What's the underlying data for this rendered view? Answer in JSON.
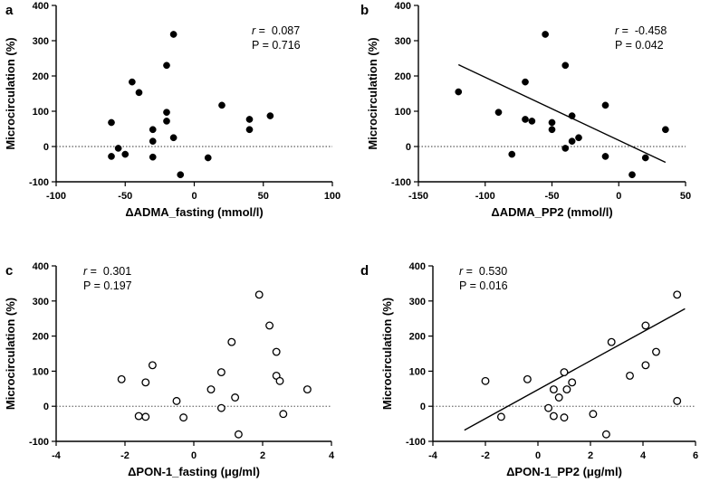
{
  "chart_data": [
    {
      "panel": "a",
      "type": "scatter",
      "xlabel": "ΔADMA_fasting (mmol/l)",
      "ylabel": "Microcirculation (%)",
      "xlim": [
        -100,
        100
      ],
      "ylim": [
        -100,
        400
      ],
      "xticks": [
        "-100",
        "-50",
        "0",
        "50",
        "100"
      ],
      "yticks": [
        "-100",
        "0",
        "100",
        "200",
        "300",
        "400"
      ],
      "marker": "filled",
      "annotation": {
        "r_label": "r",
        "r_value": " =  0.087",
        "p_text": "P = 0.716"
      },
      "regression": null,
      "points": [
        {
          "x": -60,
          "y": 68
        },
        {
          "x": -60,
          "y": -28
        },
        {
          "x": -55,
          "y": -5
        },
        {
          "x": -50,
          "y": -22
        },
        {
          "x": -45,
          "y": 183
        },
        {
          "x": -40,
          "y": 153
        },
        {
          "x": -30,
          "y": 48
        },
        {
          "x": -30,
          "y": 15
        },
        {
          "x": -30,
          "y": -30
        },
        {
          "x": -20,
          "y": 230
        },
        {
          "x": -20,
          "y": 97
        },
        {
          "x": -20,
          "y": 72
        },
        {
          "x": -15,
          "y": 318
        },
        {
          "x": -15,
          "y": 25
        },
        {
          "x": -10,
          "y": -80
        },
        {
          "x": 10,
          "y": -32
        },
        {
          "x": 20,
          "y": 117
        },
        {
          "x": 40,
          "y": 77
        },
        {
          "x": 40,
          "y": 48
        },
        {
          "x": 55,
          "y": 87
        }
      ]
    },
    {
      "panel": "b",
      "type": "scatter",
      "xlabel": "ΔADMA_PP2 (mmol/l)",
      "ylabel": "Microcirculation (%)",
      "xlim": [
        -150,
        50
      ],
      "ylim": [
        -100,
        400
      ],
      "xticks": [
        "-150",
        "-100",
        "-50",
        "0",
        "50"
      ],
      "yticks": [
        "-100",
        "0",
        "100",
        "200",
        "300",
        "400"
      ],
      "marker": "filled",
      "annotation": {
        "r_label": "r",
        "r_value": " =  -0.458",
        "p_text": "P = 0.042"
      },
      "regression": {
        "x1": -120,
        "y1": 232,
        "x2": 35,
        "y2": -45
      },
      "points": [
        {
          "x": -120,
          "y": 155
        },
        {
          "x": -90,
          "y": 97
        },
        {
          "x": -80,
          "y": -22
        },
        {
          "x": -70,
          "y": 183
        },
        {
          "x": -70,
          "y": 77
        },
        {
          "x": -65,
          "y": 72
        },
        {
          "x": -55,
          "y": 318
        },
        {
          "x": -50,
          "y": 68
        },
        {
          "x": -50,
          "y": 48
        },
        {
          "x": -40,
          "y": 230
        },
        {
          "x": -40,
          "y": -5
        },
        {
          "x": -35,
          "y": 87
        },
        {
          "x": -35,
          "y": 15
        },
        {
          "x": -30,
          "y": 25
        },
        {
          "x": -10,
          "y": 117
        },
        {
          "x": -10,
          "y": -28
        },
        {
          "x": 10,
          "y": -80
        },
        {
          "x": 20,
          "y": -32
        },
        {
          "x": 35,
          "y": 48
        }
      ]
    },
    {
      "panel": "c",
      "type": "scatter",
      "xlabel": "ΔPON-1_fasting (μg/ml)",
      "ylabel": "Microcirculation (%)",
      "xlim": [
        -4,
        4
      ],
      "ylim": [
        -100,
        400
      ],
      "xticks": [
        "-4",
        "-2",
        "0",
        "2",
        "4"
      ],
      "yticks": [
        "-100",
        "0",
        "100",
        "200",
        "300",
        "400"
      ],
      "marker": "open",
      "annotation": {
        "r_label": "r",
        "r_value": " =  0.301",
        "p_text": "P = 0.197"
      },
      "regression": null,
      "points": [
        {
          "x": -2.1,
          "y": 77
        },
        {
          "x": -1.6,
          "y": -28
        },
        {
          "x": -1.4,
          "y": 68
        },
        {
          "x": -1.4,
          "y": -30
        },
        {
          "x": -1.2,
          "y": 117
        },
        {
          "x": -0.5,
          "y": 15
        },
        {
          "x": -0.3,
          "y": -32
        },
        {
          "x": 0.5,
          "y": 48
        },
        {
          "x": 0.8,
          "y": 97
        },
        {
          "x": 0.8,
          "y": -5
        },
        {
          "x": 1.1,
          "y": 183
        },
        {
          "x": 1.2,
          "y": 25
        },
        {
          "x": 1.3,
          "y": -80
        },
        {
          "x": 1.9,
          "y": 318
        },
        {
          "x": 2.2,
          "y": 230
        },
        {
          "x": 2.4,
          "y": 155
        },
        {
          "x": 2.4,
          "y": 87
        },
        {
          "x": 2.5,
          "y": 72
        },
        {
          "x": 2.6,
          "y": -22
        },
        {
          "x": 3.3,
          "y": 48
        }
      ]
    },
    {
      "panel": "d",
      "type": "scatter",
      "xlabel": "ΔPON-1_PP2 (μg/ml)",
      "ylabel": "Microcirculation (%)",
      "xlim": [
        -4,
        6
      ],
      "ylim": [
        -100,
        400
      ],
      "xticks": [
        "-4",
        "-2",
        "0",
        "2",
        "4",
        "6"
      ],
      "yticks": [
        "-100",
        "0",
        "100",
        "200",
        "300",
        "400"
      ],
      "marker": "open",
      "annotation": {
        "r_label": "r",
        "r_value": " =  0.530",
        "p_text": "P = 0.016"
      },
      "regression": {
        "x1": -2.8,
        "y1": -68,
        "x2": 5.6,
        "y2": 278
      },
      "points": [
        {
          "x": -2.0,
          "y": 72
        },
        {
          "x": -1.4,
          "y": -30
        },
        {
          "x": -0.4,
          "y": 77
        },
        {
          "x": 0.4,
          "y": -5
        },
        {
          "x": 0.6,
          "y": 48
        },
        {
          "x": 0.6,
          "y": -28
        },
        {
          "x": 0.8,
          "y": 25
        },
        {
          "x": 1.0,
          "y": 97
        },
        {
          "x": 1.0,
          "y": -32
        },
        {
          "x": 1.1,
          "y": 48
        },
        {
          "x": 1.3,
          "y": 68
        },
        {
          "x": 2.1,
          "y": -22
        },
        {
          "x": 2.6,
          "y": -80
        },
        {
          "x": 2.8,
          "y": 183
        },
        {
          "x": 3.5,
          "y": 87
        },
        {
          "x": 4.1,
          "y": 230
        },
        {
          "x": 4.1,
          "y": 117
        },
        {
          "x": 4.5,
          "y": 155
        },
        {
          "x": 5.3,
          "y": 318
        },
        {
          "x": 5.3,
          "y": 15
        }
      ]
    }
  ]
}
